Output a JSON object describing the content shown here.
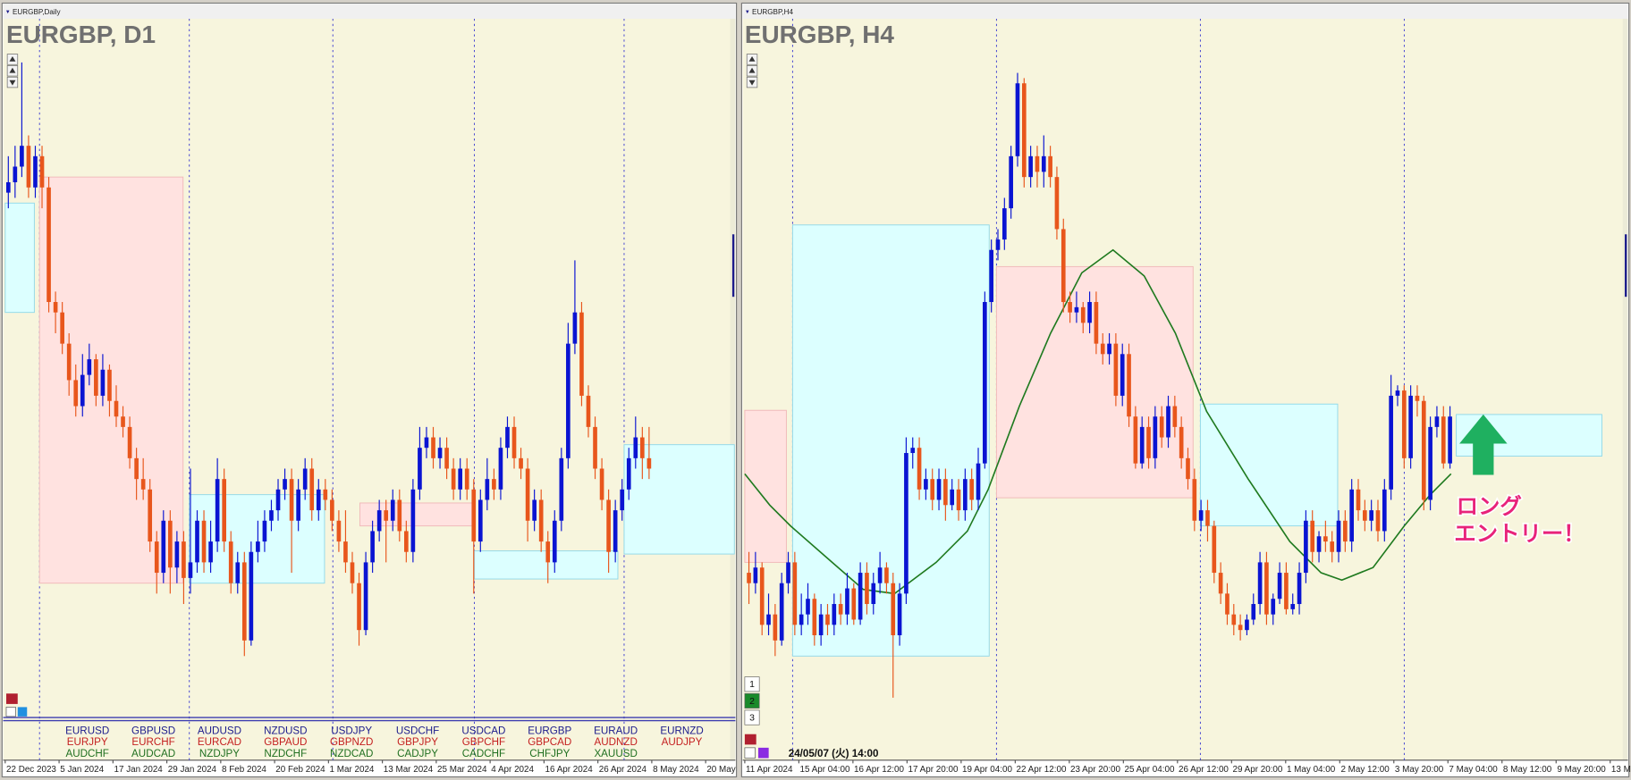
{
  "chart_data": [
    {
      "type": "candlestick",
      "window_title": "EURGBP,Daily",
      "title": "EURGBP, D1",
      "up_color": "#0a14d2",
      "down_color": "#e8561c",
      "ylim": [
        0,
        67
      ],
      "x_labels": [
        "22 Dec 2023",
        "5 Jan 2024",
        "17 Jan 2024",
        "29 Jan 2024",
        "8 Feb 2024",
        "20 Feb 2024",
        "1 Mar 2024",
        "13 Mar 2024",
        "25 Mar 2024",
        "4 Apr 2024",
        "16 Apr 2024",
        "26 Apr 2024",
        "8 May 2024",
        "20 May"
      ],
      "candles": [
        [
          50.5,
          54,
          49,
          51.5
        ],
        [
          51.5,
          55,
          50,
          53
        ],
        [
          53,
          63,
          52,
          55
        ],
        [
          55,
          56,
          50,
          51
        ],
        [
          51,
          55,
          50,
          54
        ],
        [
          54,
          55,
          49,
          51
        ],
        [
          51,
          52,
          39,
          40
        ],
        [
          40,
          41,
          37,
          39
        ],
        [
          39,
          40,
          35,
          36
        ],
        [
          36,
          37,
          31,
          32.5
        ],
        [
          32.5,
          34,
          29,
          30
        ],
        [
          30,
          35,
          29,
          33
        ],
        [
          33,
          36,
          32,
          34.5
        ],
        [
          34.5,
          35,
          30,
          31
        ],
        [
          31,
          35,
          30,
          33.5
        ],
        [
          33.5,
          34,
          29,
          30.5
        ],
        [
          30.5,
          32,
          28,
          29
        ],
        [
          29,
          30,
          27,
          28
        ],
        [
          28,
          29,
          24,
          25
        ],
        [
          25,
          26,
          21,
          23
        ],
        [
          23,
          25,
          21,
          22
        ],
        [
          22,
          23,
          16,
          17
        ],
        [
          17,
          18,
          12,
          14
        ],
        [
          14,
          20,
          13,
          19
        ],
        [
          19,
          20,
          12,
          14.5
        ],
        [
          14.5,
          18,
          13,
          17
        ],
        [
          17,
          18,
          11,
          13.5
        ],
        [
          13.5,
          24,
          12,
          15
        ],
        [
          15,
          20,
          14,
          19
        ],
        [
          19,
          20,
          14,
          15
        ],
        [
          15,
          19,
          14,
          17
        ],
        [
          17,
          25,
          16,
          23
        ],
        [
          23,
          24,
          16,
          17
        ],
        [
          17,
          18,
          12,
          13
        ],
        [
          13,
          16,
          12,
          15
        ],
        [
          15,
          16,
          6,
          7.5
        ],
        [
          7.5,
          17,
          7,
          16
        ],
        [
          16,
          19,
          15,
          17
        ],
        [
          17,
          20,
          16,
          19
        ],
        [
          19,
          21,
          18,
          20
        ],
        [
          20,
          23,
          19,
          22
        ],
        [
          22,
          24,
          21,
          23
        ],
        [
          23,
          24,
          14,
          19
        ],
        [
          19,
          23,
          18,
          22
        ],
        [
          22,
          25,
          21,
          24
        ],
        [
          24,
          25,
          19,
          20
        ],
        [
          20,
          23,
          19,
          22
        ],
        [
          22,
          23,
          20,
          21
        ],
        [
          21,
          22,
          18,
          19
        ],
        [
          19,
          20,
          16,
          17
        ],
        [
          17,
          20,
          14,
          15
        ],
        [
          15,
          16,
          12,
          13
        ],
        [
          13,
          14,
          7,
          8.5
        ],
        [
          8.5,
          16,
          8,
          15
        ],
        [
          15,
          19,
          14,
          18
        ],
        [
          18,
          21,
          17,
          20
        ],
        [
          20,
          21,
          15,
          19
        ],
        [
          19,
          22,
          18,
          21
        ],
        [
          21,
          22,
          17,
          18
        ],
        [
          18,
          19,
          15,
          16
        ],
        [
          16,
          23,
          15,
          22
        ],
        [
          22,
          28,
          21,
          26
        ],
        [
          26,
          28,
          25,
          27
        ],
        [
          27,
          28,
          24,
          25
        ],
        [
          25,
          27,
          24,
          26
        ],
        [
          26,
          27,
          23,
          24
        ],
        [
          24,
          25,
          21,
          22
        ],
        [
          22,
          25,
          21,
          24
        ],
        [
          24,
          25,
          21,
          22
        ],
        [
          22,
          23,
          12,
          17
        ],
        [
          17,
          22,
          16,
          21
        ],
        [
          21,
          25,
          20,
          23
        ],
        [
          23,
          24,
          21,
          22
        ],
        [
          22,
          27,
          21,
          26
        ],
        [
          26,
          29,
          25,
          28
        ],
        [
          28,
          29,
          24,
          25
        ],
        [
          25,
          26,
          23,
          24
        ],
        [
          24,
          25,
          17,
          19
        ],
        [
          19,
          22,
          18,
          21
        ],
        [
          21,
          22,
          16,
          17
        ],
        [
          17,
          18,
          13,
          15
        ],
        [
          15,
          20,
          14,
          19
        ],
        [
          19,
          26,
          18,
          25
        ],
        [
          25,
          38,
          24,
          36
        ],
        [
          36,
          44,
          35,
          39
        ],
        [
          39,
          40,
          30,
          31
        ],
        [
          31,
          32,
          27,
          28
        ],
        [
          28,
          29,
          23,
          24
        ],
        [
          24,
          25,
          20,
          21
        ],
        [
          21,
          22,
          14,
          16
        ],
        [
          16,
          21,
          15,
          20
        ],
        [
          20,
          23,
          19,
          22
        ],
        [
          22,
          26,
          21,
          25
        ],
        [
          25,
          29,
          24,
          27
        ],
        [
          27,
          28,
          23,
          25
        ],
        [
          25,
          28,
          23,
          24
        ]
      ]
    },
    {
      "type": "candlestick",
      "window_title": "EURGBP,H4",
      "title": "EURGBP, H4",
      "up_color": "#0a14d2",
      "down_color": "#e8561c",
      "ylim": [
        0,
        67
      ],
      "x_labels": [
        "11 Apr 2024",
        "15 Apr 04:00",
        "16 Apr 12:00",
        "17 Apr 20:00",
        "19 Apr 04:00",
        "22 Apr 12:00",
        "23 Apr 20:00",
        "25 Apr 04:00",
        "26 Apr 12:00",
        "29 Apr 20:00",
        "1 May 04:00",
        "2 May 12:00",
        "3 May 20:00",
        "7 May 04:00",
        "8 May 12:00",
        "9 May 20:00",
        "13 M"
      ],
      "candles": [
        [
          14,
          16,
          11,
          13
        ],
        [
          13,
          16,
          12,
          14.5
        ],
        [
          14.5,
          15,
          8,
          9
        ],
        [
          9,
          12,
          8,
          10
        ],
        [
          10,
          11,
          6,
          7.5
        ],
        [
          7.5,
          14,
          7,
          13
        ],
        [
          13,
          16,
          12,
          15
        ],
        [
          15,
          16,
          8,
          9
        ],
        [
          9,
          12,
          8,
          10
        ],
        [
          10,
          13,
          9,
          11.5
        ],
        [
          11.5,
          12,
          7,
          8
        ],
        [
          8,
          11,
          7,
          10
        ],
        [
          10,
          11,
          8,
          9
        ],
        [
          9,
          12,
          8,
          11
        ],
        [
          11,
          12,
          9,
          10
        ],
        [
          10,
          14,
          9,
          12.5
        ],
        [
          12.5,
          13,
          9,
          9.5
        ],
        [
          9.5,
          15,
          9,
          14
        ],
        [
          14,
          15,
          10,
          11
        ],
        [
          11,
          14,
          10,
          13
        ],
        [
          13,
          16,
          12,
          14.5
        ],
        [
          14.5,
          15,
          12,
          13
        ],
        [
          13,
          14,
          2,
          8
        ],
        [
          8,
          13,
          7,
          12
        ],
        [
          12,
          27,
          11,
          25.5
        ],
        [
          25.5,
          27,
          24,
          26
        ],
        [
          26,
          27,
          21,
          22
        ],
        [
          22,
          24,
          21,
          23
        ],
        [
          23,
          24,
          20,
          21
        ],
        [
          21,
          24,
          20,
          23
        ],
        [
          23,
          24,
          19,
          20.5
        ],
        [
          20.5,
          23,
          20,
          22
        ],
        [
          22,
          23,
          19,
          20
        ],
        [
          20,
          24,
          19,
          23
        ],
        [
          23,
          24,
          20,
          21
        ],
        [
          21,
          26,
          20,
          24.5
        ],
        [
          24.5,
          41,
          24,
          40
        ],
        [
          40,
          46,
          39,
          45
        ],
        [
          45,
          47,
          44,
          46
        ],
        [
          46,
          50,
          45,
          49
        ],
        [
          49,
          55,
          48,
          54
        ],
        [
          54,
          62,
          53,
          61
        ],
        [
          61,
          61.5,
          51,
          52
        ],
        [
          52,
          55,
          51,
          54
        ],
        [
          54,
          55,
          51,
          52.5
        ],
        [
          52.5,
          56,
          51,
          54
        ],
        [
          54,
          55,
          51,
          52
        ],
        [
          52,
          53,
          46,
          47
        ],
        [
          47,
          48,
          39,
          40
        ],
        [
          40,
          41,
          38,
          39
        ],
        [
          39,
          41,
          38,
          39.5
        ],
        [
          39.5,
          40,
          37,
          38
        ],
        [
          38,
          41,
          37,
          40
        ],
        [
          40,
          41,
          35,
          36
        ],
        [
          36,
          37,
          34,
          35
        ],
        [
          35,
          37,
          34,
          36
        ],
        [
          36,
          37,
          30,
          31
        ],
        [
          31,
          36,
          30,
          35
        ],
        [
          35,
          36,
          28,
          29
        ],
        [
          29,
          30,
          24,
          24.5
        ],
        [
          24.5,
          29,
          24,
          28
        ],
        [
          28,
          29,
          24,
          25
        ],
        [
          25,
          30,
          24,
          29
        ],
        [
          29,
          30,
          26,
          27
        ],
        [
          27,
          31,
          26,
          30
        ],
        [
          30,
          31,
          27,
          28
        ],
        [
          28,
          29,
          24,
          25
        ],
        [
          25,
          26,
          22,
          23
        ],
        [
          23,
          24,
          18,
          19
        ],
        [
          19,
          21,
          18,
          20
        ],
        [
          20,
          21,
          17,
          18.5
        ],
        [
          18.5,
          19,
          13,
          14
        ],
        [
          14,
          15,
          11,
          12
        ],
        [
          12,
          13,
          9,
          10
        ],
        [
          10,
          11,
          8,
          9
        ],
        [
          9,
          10,
          7.5,
          8.5
        ],
        [
          8.5,
          10,
          8,
          9.5
        ],
        [
          9.5,
          12,
          9,
          11
        ],
        [
          11,
          16,
          10,
          15
        ],
        [
          15,
          16,
          9,
          10
        ],
        [
          10,
          12,
          9,
          11.5
        ],
        [
          11.5,
          15,
          11,
          14
        ],
        [
          14,
          15,
          10,
          10.5
        ],
        [
          10.5,
          12,
          10,
          11
        ],
        [
          11,
          15,
          10,
          14
        ],
        [
          14,
          20,
          13,
          19
        ],
        [
          19,
          20,
          15,
          16
        ],
        [
          16,
          18,
          15,
          17.5
        ],
        [
          17.5,
          19,
          16,
          17
        ],
        [
          17,
          18,
          15,
          16
        ],
        [
          16,
          20,
          15,
          19
        ],
        [
          19,
          20,
          16,
          17
        ],
        [
          17,
          23,
          16,
          22
        ],
        [
          22,
          23,
          19,
          20
        ],
        [
          20,
          21,
          18,
          19
        ],
        [
          19,
          21,
          18,
          20
        ],
        [
          20,
          21,
          17,
          18
        ],
        [
          18,
          23,
          17,
          22
        ],
        [
          22,
          33,
          21,
          31
        ],
        [
          31,
          32,
          30,
          31.5
        ],
        [
          31.5,
          32,
          24,
          25
        ],
        [
          25,
          32,
          24,
          31
        ],
        [
          31,
          32,
          29,
          30.5
        ],
        [
          30.5,
          31,
          20,
          21
        ],
        [
          21,
          29,
          20,
          28
        ],
        [
          28,
          30,
          27,
          29
        ],
        [
          29,
          30,
          24,
          24.5
        ],
        [
          24.5,
          30,
          24,
          29
        ]
      ]
    }
  ],
  "watchlist": {
    "row_colors": [
      "#1c1c8c",
      "#c42020",
      "#207020"
    ],
    "columns": [
      [
        "EURUSD",
        "EURJPY",
        "AUDCHF"
      ],
      [
        "GBPUSD",
        "EURCHF",
        "AUDCAD"
      ],
      [
        "AUDUSD",
        "EURCAD",
        "NZDJPY"
      ],
      [
        "NZDUSD",
        "GBPAUD",
        "NZDCHF"
      ],
      [
        "USDJPY",
        "GBPNZD",
        "NZDCAD"
      ],
      [
        "USDCHF",
        "GBPJPY",
        "CADJPY"
      ],
      [
        "USDCAD",
        "GBPCHF",
        "CADCHF"
      ],
      [
        "EURGBP",
        "GBPCAD",
        "CHFJPY"
      ],
      [
        "EURAUD",
        "AUDNZD",
        "XAUUSD"
      ],
      [
        "EURNZD",
        "AUDJPY"
      ]
    ]
  },
  "cursor_time": "24/05/07 (火) 14:00",
  "annotation": [
    "ロング",
    "エントリー！"
  ],
  "tabs": [
    "1",
    "2",
    "3"
  ]
}
